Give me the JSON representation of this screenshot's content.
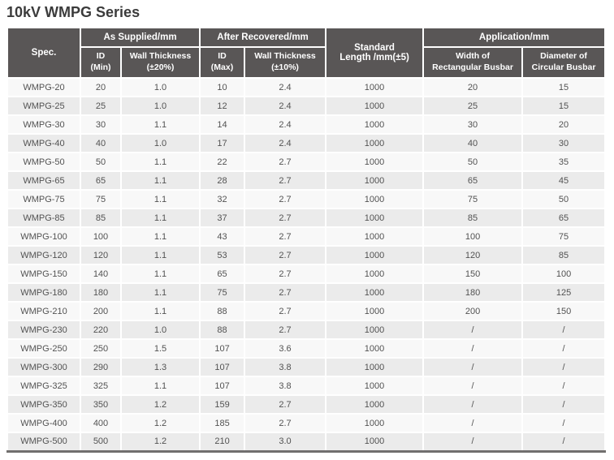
{
  "title": "10kV WMPG Series",
  "colors": {
    "header_bg": "#595656",
    "row_light": "#f8f8f8",
    "row_dark": "#ebebeb",
    "bottom_border": "#716f6e",
    "text": "#525252",
    "title_text": "#3b3b3b"
  },
  "table": {
    "header": {
      "spec": "Spec.",
      "as_supplied": "As Supplied/mm",
      "after_recovered": "After Recovered/mm",
      "standard_length": "Standard\nLength /mm(±5)",
      "application": "Application/mm",
      "id_min": "ID\n(Min)",
      "wall_thickness_20": "Wall Thickness\n(±20%)",
      "id_max": "ID\n(Max)",
      "wall_thickness_10": "Wall Thickness\n(±10%)",
      "width_rect": "Width of\nRectangular Busbar",
      "diameter_circ": "Diameter of\nCircular Busbar"
    },
    "rows": [
      [
        "WMPG-20",
        "20",
        "1.0",
        "10",
        "2.4",
        "1000",
        "20",
        "15"
      ],
      [
        "WMPG-25",
        "25",
        "1.0",
        "12",
        "2.4",
        "1000",
        "25",
        "15"
      ],
      [
        "WMPG-30",
        "30",
        "1.1",
        "14",
        "2.4",
        "1000",
        "30",
        "20"
      ],
      [
        "WMPG-40",
        "40",
        "1.0",
        "17",
        "2.4",
        "1000",
        "40",
        "30"
      ],
      [
        "WMPG-50",
        "50",
        "1.1",
        "22",
        "2.7",
        "1000",
        "50",
        "35"
      ],
      [
        "WMPG-65",
        "65",
        "1.1",
        "28",
        "2.7",
        "1000",
        "65",
        "45"
      ],
      [
        "WMPG-75",
        "75",
        "1.1",
        "32",
        "2.7",
        "1000",
        "75",
        "50"
      ],
      [
        "WMPG-85",
        "85",
        "1.1",
        "37",
        "2.7",
        "1000",
        "85",
        "65"
      ],
      [
        "WMPG-100",
        "100",
        "1.1",
        "43",
        "2.7",
        "1000",
        "100",
        "75"
      ],
      [
        "WMPG-120",
        "120",
        "1.1",
        "53",
        "2.7",
        "1000",
        "120",
        "85"
      ],
      [
        "WMPG-150",
        "140",
        "1.1",
        "65",
        "2.7",
        "1000",
        "150",
        "100"
      ],
      [
        "WMPG-180",
        "180",
        "1.1",
        "75",
        "2.7",
        "1000",
        "180",
        "125"
      ],
      [
        "WMPG-210",
        "200",
        "1.1",
        "88",
        "2.7",
        "1000",
        "200",
        "150"
      ],
      [
        "WMPG-230",
        "220",
        "1.0",
        "88",
        "2.7",
        "1000",
        "/",
        "/"
      ],
      [
        "WMPG-250",
        "250",
        "1.5",
        "107",
        "3.6",
        "1000",
        "/",
        "/"
      ],
      [
        "WMPG-300",
        "290",
        "1.3",
        "107",
        "3.8",
        "1000",
        "/",
        "/"
      ],
      [
        "WMPG-325",
        "325",
        "1.1",
        "107",
        "3.8",
        "1000",
        "/",
        "/"
      ],
      [
        "WMPG-350",
        "350",
        "1.2",
        "159",
        "2.7",
        "1000",
        "/",
        "/"
      ],
      [
        "WMPG-400",
        "400",
        "1.2",
        "185",
        "2.7",
        "1000",
        "/",
        "/"
      ],
      [
        "WMPG-500",
        "500",
        "1.2",
        "210",
        "3.0",
        "1000",
        "/",
        "/"
      ]
    ]
  }
}
